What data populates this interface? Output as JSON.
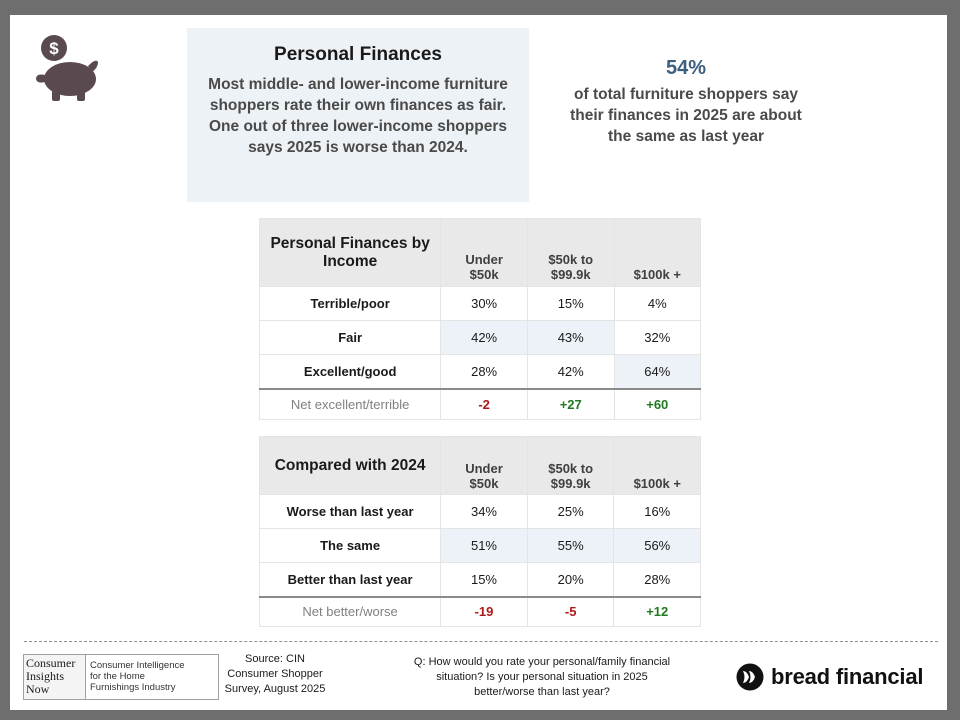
{
  "header": {
    "title": "Personal Finances",
    "summary": "Most middle- and lower-income furniture shoppers rate their own finances as fair. One out of three lower-income shoppers says 2025 is worse than 2024."
  },
  "highlight": {
    "value": "54%",
    "description": "of total furniture shoppers say their finances in 2025 are about the same as last year"
  },
  "table_income": {
    "title": "Personal Finances by Income",
    "columns": [
      "Under $50k",
      "$50k to $99.9k",
      "$100k +"
    ],
    "rows": [
      {
        "label": "Terrible/poor",
        "values": [
          "30%",
          "15%",
          "4%"
        ]
      },
      {
        "label": "Fair",
        "values": [
          "42%",
          "43%",
          "32%"
        ]
      },
      {
        "label": "Excellent/good",
        "values": [
          "28%",
          "42%",
          "64%"
        ]
      }
    ],
    "net": {
      "label": "Net excellent/terrible",
      "values": [
        "-2",
        "+27",
        "+60"
      ]
    }
  },
  "table_compare": {
    "title": "Compared with 2024",
    "columns": [
      "Under $50k",
      "$50k to $99.9k",
      "$100k +"
    ],
    "rows": [
      {
        "label": "Worse than last year",
        "values": [
          "34%",
          "25%",
          "16%"
        ]
      },
      {
        "label": "The same",
        "values": [
          "51%",
          "55%",
          "56%"
        ]
      },
      {
        "label": "Better than last year",
        "values": [
          "15%",
          "20%",
          "28%"
        ]
      }
    ],
    "net": {
      "label": "Net better/worse",
      "values": [
        "-19",
        "-5",
        "+12"
      ]
    }
  },
  "footer": {
    "cin_logo": {
      "line1": "Consumer",
      "line2": "Insights",
      "line3": "Now",
      "tagline1": "Consumer Intelligence",
      "tagline2": "for the Home",
      "tagline3": "Furnishings Industry"
    },
    "source": "Source: CIN Consumer Shopper Survey, August 2025",
    "question": "Q: How would you rate your personal/family financial situation? Is your personal situation in 2025 better/worse than last year?",
    "brand": "bread financial"
  },
  "colors": {
    "accent": "#3a5f7f",
    "negative": "#b01818",
    "positive": "#1f7a1f",
    "icon": "#5a4a4f"
  },
  "icons": {
    "header_icon": "piggy-bank-dollar-icon",
    "brand_icon": "bread-logo-icon"
  }
}
